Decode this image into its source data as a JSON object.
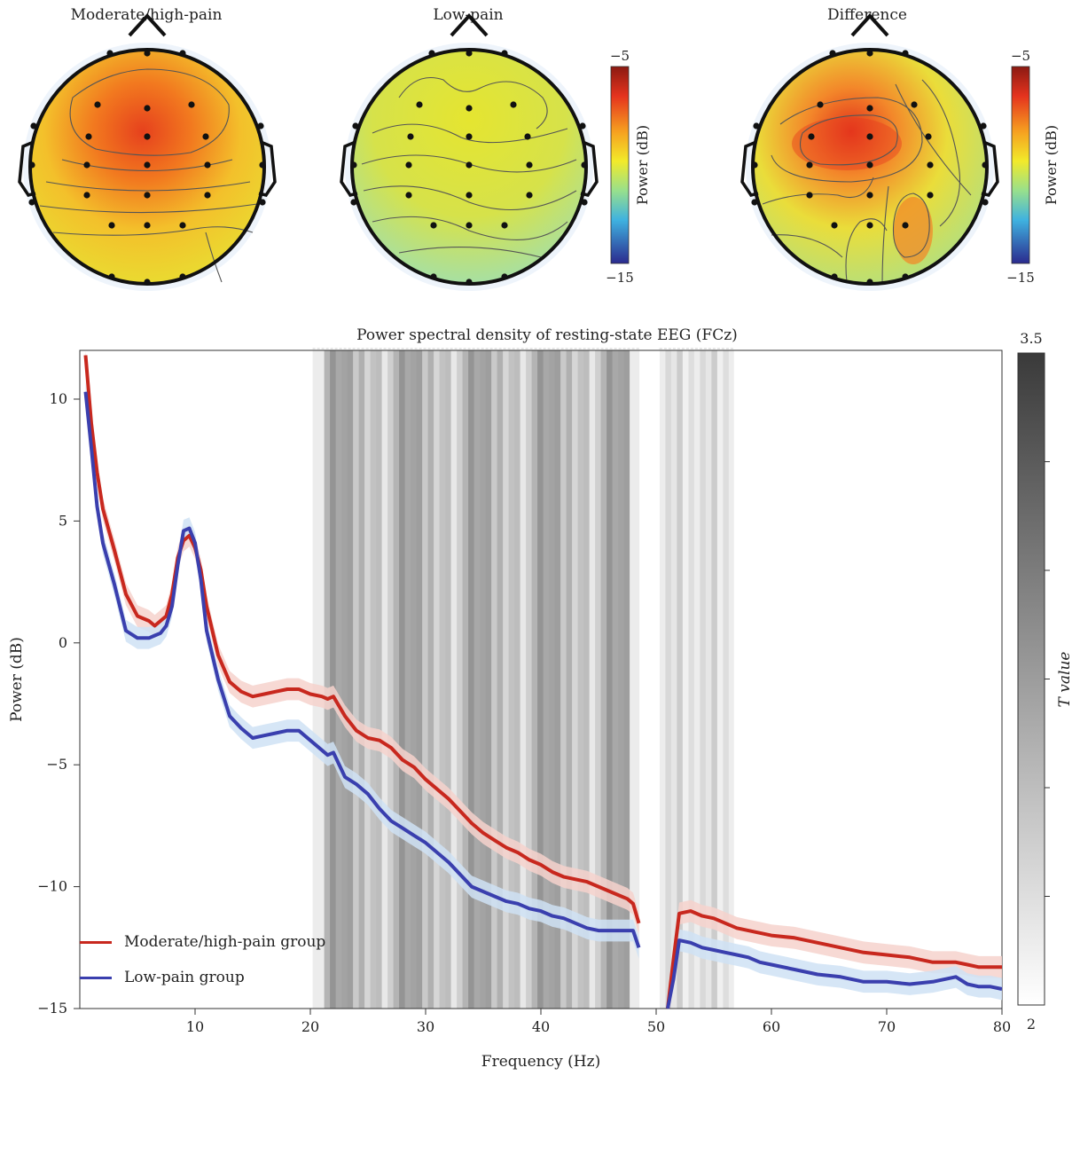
{
  "topomaps": [
    {
      "title": "Moderate/high-pain",
      "variant": "high"
    },
    {
      "title": "Low-pain",
      "variant": "low"
    },
    {
      "title": "Difference",
      "variant": "diff"
    }
  ],
  "topo_colorbars": [
    {
      "top_label": "−5",
      "bottom_label": "−15",
      "axis_label": "Power (dB)"
    },
    {
      "top_label": "−5",
      "bottom_label": "−15",
      "axis_label": "Power (dB)"
    }
  ],
  "colors": {
    "high": "#c8281e",
    "low": "#3a3fae",
    "high_band": "#f6d2cc",
    "low_band": "#cfe2f5"
  },
  "chart_data": {
    "type": "line",
    "title": "Power spectral density of resting-state EEG (FCz)",
    "xlabel": "Frequency (Hz)",
    "ylabel": "Power (dB)",
    "xlim": [
      0,
      80
    ],
    "ylim": [
      -15,
      12
    ],
    "xticks": [
      10,
      20,
      30,
      40,
      50,
      60,
      70,
      80
    ],
    "yticks": [
      10,
      5,
      0,
      -5,
      -10,
      -15
    ],
    "series": [
      {
        "name": "Moderate/high-pain group",
        "color": "#c8281e",
        "x": [
          0.5,
          1,
          1.5,
          2,
          3,
          4,
          5,
          6,
          6.5,
          7,
          7.5,
          8,
          8.5,
          9,
          9.5,
          10,
          10.5,
          11,
          12,
          13,
          14,
          15,
          16,
          17,
          18,
          19,
          20,
          21,
          21.5,
          22,
          23,
          24,
          25,
          26,
          27,
          28,
          29,
          30,
          31,
          32,
          33,
          34,
          35,
          36,
          37,
          38,
          39,
          40,
          41,
          42,
          43,
          44,
          45,
          46,
          47,
          47.5,
          48,
          48.5,
          51,
          51.5,
          52,
          53,
          54,
          55,
          56,
          57,
          58,
          59,
          60,
          62,
          64,
          66,
          68,
          70,
          72,
          74,
          76,
          77,
          78,
          79,
          80
        ],
        "y": [
          11.8,
          9,
          7,
          5.5,
          3.8,
          2,
          1.1,
          0.9,
          0.7,
          0.9,
          1.1,
          2,
          3.5,
          4.2,
          4.4,
          3.9,
          3,
          1.5,
          -0.5,
          -1.6,
          -2,
          -2.2,
          -2.1,
          -2,
          -1.9,
          -1.9,
          -2.1,
          -2.2,
          -2.3,
          -2.2,
          -3,
          -3.6,
          -3.9,
          -4,
          -4.3,
          -4.8,
          -5.1,
          -5.6,
          -6,
          -6.4,
          -6.9,
          -7.4,
          -7.8,
          -8.1,
          -8.4,
          -8.6,
          -8.9,
          -9.1,
          -9.4,
          -9.6,
          -9.7,
          -9.8,
          -10,
          -10.2,
          -10.4,
          -10.5,
          -10.7,
          -11.5,
          -15,
          -13,
          -11.1,
          -11,
          -11.2,
          -11.3,
          -11.5,
          -11.7,
          -11.8,
          -11.9,
          -12,
          -12.1,
          -12.3,
          -12.5,
          -12.7,
          -12.8,
          -12.9,
          -13.1,
          -13.1,
          -13.2,
          -13.3,
          -13.3,
          -13.3
        ]
      },
      {
        "name": "Low-pain group",
        "color": "#3a3fae",
        "x": [
          0.5,
          1,
          1.5,
          2,
          3,
          4,
          5,
          6,
          6.5,
          7,
          7.5,
          8,
          8.5,
          9,
          9.5,
          10,
          10.5,
          11,
          12,
          13,
          14,
          15,
          16,
          17,
          18,
          19,
          20,
          21,
          21.5,
          22,
          23,
          24,
          25,
          26,
          27,
          28,
          29,
          30,
          31,
          32,
          33,
          34,
          35,
          36,
          37,
          38,
          39,
          40,
          41,
          42,
          43,
          44,
          45,
          46,
          47,
          47.5,
          48,
          48.5,
          51,
          51.5,
          52,
          53,
          54,
          55,
          56,
          57,
          58,
          59,
          60,
          62,
          64,
          66,
          68,
          70,
          72,
          74,
          76,
          77,
          78,
          79,
          80
        ],
        "y": [
          10.3,
          8,
          5.6,
          4.1,
          2.4,
          0.5,
          0.2,
          0.2,
          0.3,
          0.4,
          0.7,
          1.5,
          3.2,
          4.6,
          4.7,
          4.1,
          2.6,
          0.5,
          -1.5,
          -3,
          -3.5,
          -3.9,
          -3.8,
          -3.7,
          -3.6,
          -3.6,
          -4,
          -4.4,
          -4.6,
          -4.5,
          -5.5,
          -5.8,
          -6.2,
          -6.8,
          -7.3,
          -7.6,
          -7.9,
          -8.2,
          -8.6,
          -9,
          -9.5,
          -10,
          -10.2,
          -10.4,
          -10.6,
          -10.7,
          -10.9,
          -11,
          -11.2,
          -11.3,
          -11.5,
          -11.7,
          -11.8,
          -11.8,
          -11.8,
          -11.8,
          -11.8,
          -12.5,
          -15,
          -13.8,
          -12.2,
          -12.3,
          -12.5,
          -12.6,
          -12.7,
          -12.8,
          -12.9,
          -13.1,
          -13.2,
          -13.4,
          -13.6,
          -13.7,
          -13.9,
          -13.9,
          -14,
          -13.9,
          -13.7,
          -14,
          -14.1,
          -14.1,
          -14.2
        ]
      }
    ],
    "significance_bands": [
      {
        "from": 20.2,
        "to": 48.5
      },
      {
        "from": 50.3,
        "to": 56.7
      }
    ],
    "tvalue_colorbar": {
      "label": "T value",
      "min": 2,
      "max": 3.5,
      "top_label": "3.5",
      "bottom_label": "2"
    },
    "legend": {
      "placement": "bottom-left"
    }
  }
}
